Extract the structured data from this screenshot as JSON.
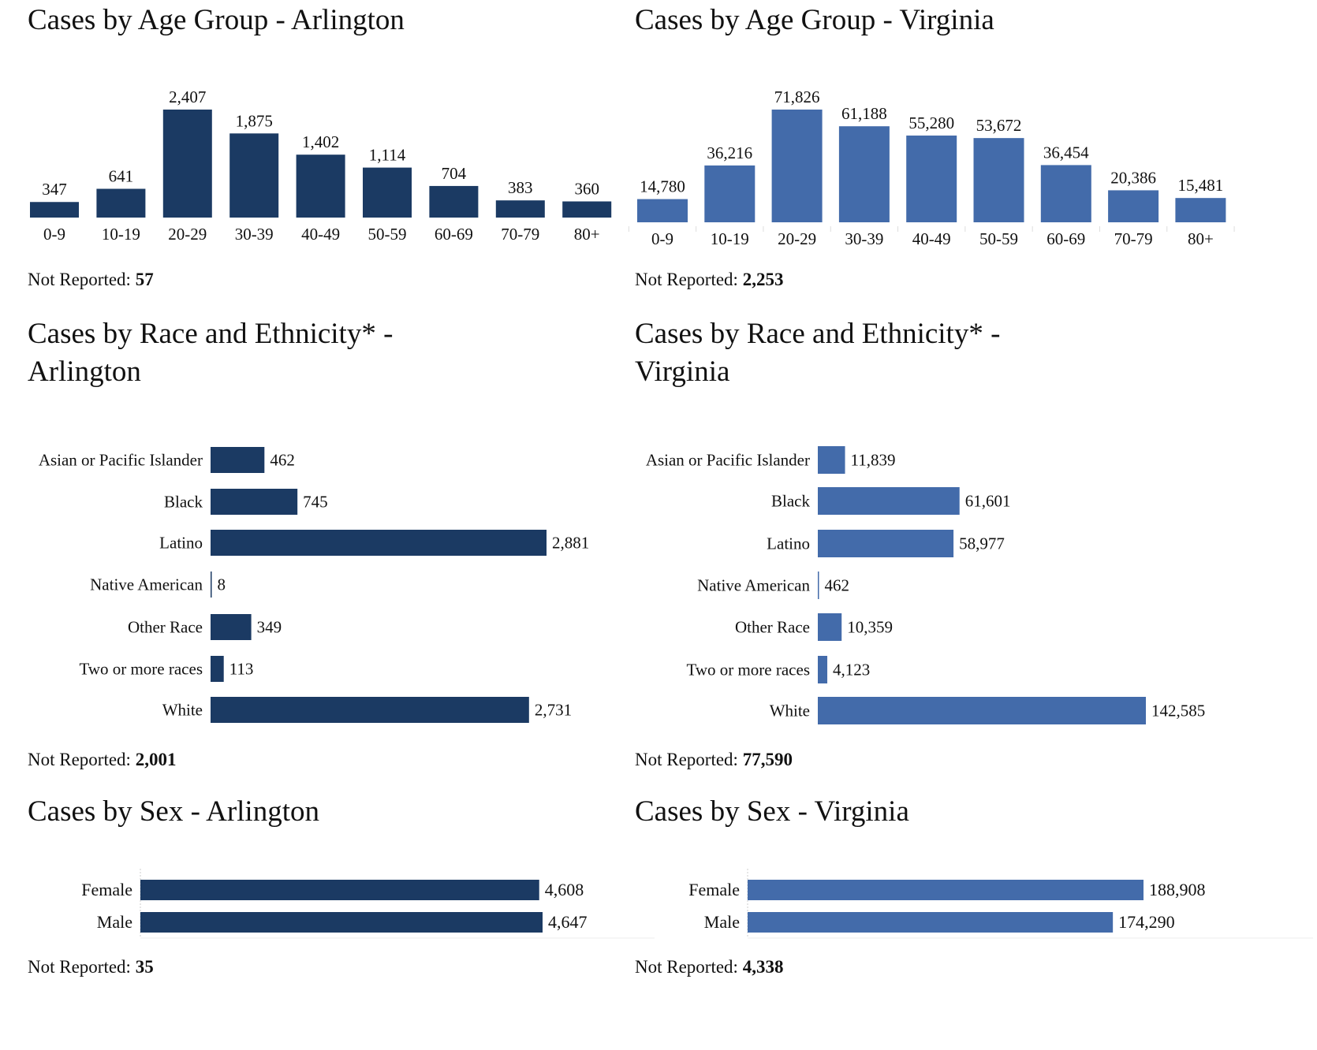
{
  "colors": {
    "arlington": "#1b3a63",
    "virginia": "#436baa"
  },
  "not_reported_label": "Not Reported:",
  "chart_data": [
    {
      "id": "age-arlington",
      "type": "bar",
      "orientation": "vertical",
      "title": "Cases by Age Group - Arlington",
      "categories": [
        "0-9",
        "10-19",
        "20-29",
        "30-39",
        "40-49",
        "50-59",
        "60-69",
        "70-79",
        "80+"
      ],
      "values": [
        347,
        641,
        2407,
        1875,
        1402,
        1114,
        704,
        383,
        360
      ],
      "labels": [
        "347",
        "641",
        "2,407",
        "1,875",
        "1,402",
        "1,114",
        "704",
        "383",
        "360"
      ],
      "not_reported": "57",
      "xlabel": "",
      "ylabel": "",
      "grid": false,
      "color_key": "arlington"
    },
    {
      "id": "age-virginia",
      "type": "bar",
      "orientation": "vertical",
      "title": "Cases by Age Group - Virginia",
      "categories": [
        "0-9",
        "10-19",
        "20-29",
        "30-39",
        "40-49",
        "50-59",
        "60-69",
        "70-79",
        "80+"
      ],
      "values": [
        14780,
        36216,
        71826,
        61188,
        55280,
        53672,
        36454,
        20386,
        15481
      ],
      "labels": [
        "14,780",
        "36,216",
        "71,826",
        "61,188",
        "55,280",
        "53,672",
        "36,454",
        "20,386",
        "15,481"
      ],
      "not_reported": "2,253",
      "xlabel": "",
      "ylabel": "",
      "grid": false,
      "color_key": "virginia"
    },
    {
      "id": "race-arlington",
      "type": "bar",
      "orientation": "horizontal",
      "title": "Cases by Race and Ethnicity* - Arlington",
      "title_lines": [
        "Cases by Race and Ethnicity* -",
        "Arlington"
      ],
      "categories": [
        "Asian or Pacific Islander",
        "Black",
        "Latino",
        "Native American",
        "Other Race",
        "Two or more races",
        "White"
      ],
      "values": [
        462,
        745,
        2881,
        8,
        349,
        113,
        2731
      ],
      "labels": [
        "462",
        "745",
        "2,881",
        "8",
        "349",
        "113",
        "2,731"
      ],
      "not_reported": "2,001",
      "xlabel": "",
      "ylabel": "",
      "grid": false,
      "color_key": "arlington"
    },
    {
      "id": "race-virginia",
      "type": "bar",
      "orientation": "horizontal",
      "title": "Cases by Race and Ethnicity* - Virginia",
      "title_lines": [
        "Cases by Race and Ethnicity* -",
        "Virginia"
      ],
      "categories": [
        "Asian or Pacific Islander",
        "Black",
        "Latino",
        "Native American",
        "Other Race",
        "Two or more races",
        "White"
      ],
      "values": [
        11839,
        61601,
        58977,
        462,
        10359,
        4123,
        142585
      ],
      "labels": [
        "11,839",
        "61,601",
        "58,977",
        "462",
        "10,359",
        "4,123",
        "142,585"
      ],
      "not_reported": "77,590",
      "xlabel": "",
      "ylabel": "",
      "grid": false,
      "color_key": "virginia"
    },
    {
      "id": "sex-arlington",
      "type": "bar",
      "orientation": "horizontal",
      "title": "Cases by Sex - Arlington",
      "categories": [
        "Female",
        "Male"
      ],
      "values": [
        4608,
        4647
      ],
      "labels": [
        "4,608",
        "4,647"
      ],
      "not_reported": "35",
      "xlabel": "",
      "ylabel": "",
      "grid": false,
      "color_key": "arlington"
    },
    {
      "id": "sex-virginia",
      "type": "bar",
      "orientation": "horizontal",
      "title": "Cases by Sex - Virginia",
      "categories": [
        "Female",
        "Male"
      ],
      "values": [
        188908,
        174290
      ],
      "labels": [
        "188,908",
        "174,290"
      ],
      "not_reported": "4,338",
      "xlabel": "",
      "ylabel": "",
      "grid": false,
      "color_key": "virginia"
    }
  ]
}
